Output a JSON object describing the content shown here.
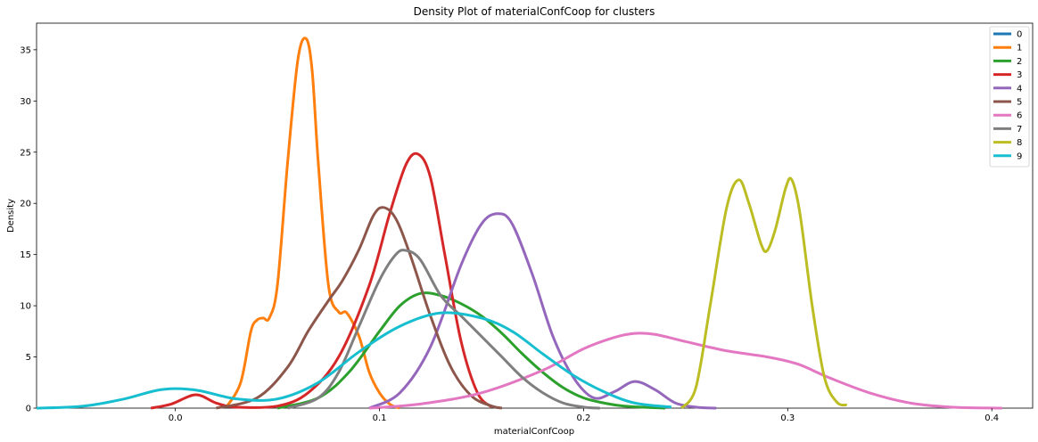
{
  "chart_data": {
    "type": "line",
    "title": "Density Plot of materialConfCoop for clusters",
    "xlabel": "materialConfCoop",
    "ylabel": "Density",
    "xlim": [
      -0.068,
      0.42
    ],
    "ylim": [
      0,
      37.6
    ],
    "xticks": [
      0.0,
      0.1,
      0.2,
      0.3,
      0.4
    ],
    "xtick_labels": [
      "0.0",
      "0.1",
      "0.2",
      "0.3",
      "0.4"
    ],
    "yticks": [
      0,
      5,
      10,
      15,
      20,
      25,
      30,
      35
    ],
    "ytick_labels": [
      "0",
      "5",
      "10",
      "15",
      "20",
      "25",
      "30",
      "35"
    ],
    "grid": false,
    "legend_position": "top-right",
    "series": [
      {
        "name": "0",
        "color": "#1f77b4",
        "x": [],
        "y": []
      },
      {
        "name": "1",
        "color": "#ff7f0e",
        "x": [
          0.025,
          0.032,
          0.037,
          0.04,
          0.043,
          0.046,
          0.05,
          0.055,
          0.06,
          0.064,
          0.067,
          0.07,
          0.075,
          0.08,
          0.084,
          0.09,
          0.095,
          0.1,
          0.105,
          0.11
        ],
        "y": [
          0.1,
          2.5,
          7.5,
          8.6,
          8.8,
          8.8,
          12.0,
          24.0,
          34.0,
          36.1,
          33.0,
          24.0,
          12.0,
          9.4,
          9.3,
          7.0,
          3.5,
          1.5,
          0.4,
          0.0
        ]
      },
      {
        "name": "2",
        "color": "#2ca02c",
        "x": [
          0.05,
          0.07,
          0.085,
          0.1,
          0.11,
          0.12,
          0.13,
          0.14,
          0.15,
          0.16,
          0.17,
          0.18,
          0.19,
          0.2,
          0.21,
          0.22,
          0.24
        ],
        "y": [
          0.0,
          1.0,
          3.5,
          7.5,
          10.0,
          11.2,
          11.0,
          10.2,
          9.0,
          7.3,
          5.3,
          3.5,
          2.0,
          1.0,
          0.5,
          0.2,
          0.0
        ]
      },
      {
        "name": "3",
        "color": "#d62728",
        "x": [
          -0.012,
          -0.002,
          0.01,
          0.02,
          0.03,
          0.05,
          0.065,
          0.08,
          0.095,
          0.105,
          0.113,
          0.119,
          0.125,
          0.132,
          0.14,
          0.148,
          0.155
        ],
        "y": [
          0.0,
          0.4,
          1.3,
          0.5,
          0.1,
          0.2,
          1.5,
          5.0,
          12.0,
          19.0,
          23.8,
          24.8,
          22.5,
          15.0,
          6.5,
          1.5,
          0.1
        ]
      },
      {
        "name": "4",
        "color": "#9467bd",
        "x": [
          0.095,
          0.11,
          0.125,
          0.14,
          0.15,
          0.158,
          0.165,
          0.175,
          0.185,
          0.195,
          0.205,
          0.215,
          0.225,
          0.235,
          0.245,
          0.255,
          0.265
        ],
        "y": [
          0.0,
          1.5,
          6.0,
          14.0,
          18.0,
          19.0,
          18.0,
          13.0,
          7.0,
          3.0,
          1.0,
          1.6,
          2.6,
          1.8,
          0.5,
          0.1,
          0.0
        ]
      },
      {
        "name": "5",
        "color": "#8c564b",
        "x": [
          0.02,
          0.04,
          0.055,
          0.065,
          0.075,
          0.082,
          0.09,
          0.097,
          0.102,
          0.108,
          0.115,
          0.125,
          0.135,
          0.145,
          0.155,
          0.16
        ],
        "y": [
          0.0,
          1.0,
          4.0,
          7.5,
          10.5,
          12.5,
          15.5,
          18.8,
          19.6,
          18.5,
          15.0,
          9.0,
          4.0,
          1.2,
          0.2,
          0.0
        ]
      },
      {
        "name": "6",
        "color": "#e377c2",
        "x": [
          0.095,
          0.12,
          0.15,
          0.18,
          0.2,
          0.215,
          0.225,
          0.235,
          0.25,
          0.27,
          0.29,
          0.305,
          0.32,
          0.34,
          0.36,
          0.38,
          0.405
        ],
        "y": [
          0.0,
          0.4,
          1.5,
          3.7,
          5.8,
          6.9,
          7.3,
          7.2,
          6.5,
          5.6,
          5.0,
          4.3,
          3.0,
          1.5,
          0.5,
          0.1,
          0.0
        ]
      },
      {
        "name": "7",
        "color": "#7f7f7f",
        "x": [
          0.055,
          0.07,
          0.08,
          0.09,
          0.1,
          0.108,
          0.113,
          0.12,
          0.13,
          0.14,
          0.15,
          0.16,
          0.17,
          0.18,
          0.19,
          0.2,
          0.208
        ],
        "y": [
          0.0,
          1.0,
          3.5,
          8.0,
          12.5,
          15.0,
          15.4,
          14.5,
          11.0,
          9.0,
          7.0,
          5.0,
          3.0,
          1.5,
          0.5,
          0.1,
          0.0
        ]
      },
      {
        "name": "8",
        "color": "#bcbd22",
        "x": [
          0.248,
          0.255,
          0.262,
          0.27,
          0.276,
          0.281,
          0.287,
          0.29,
          0.294,
          0.299,
          0.302,
          0.306,
          0.312,
          0.318,
          0.324,
          0.329
        ],
        "y": [
          0.0,
          2.0,
          10.0,
          19.5,
          22.3,
          20.0,
          16.0,
          15.4,
          17.5,
          21.5,
          22.3,
          19.0,
          10.0,
          3.0,
          0.6,
          0.3
        ]
      },
      {
        "name": "9",
        "color": "#17becf",
        "x": [
          -0.068,
          -0.045,
          -0.025,
          -0.01,
          0.0,
          0.012,
          0.03,
          0.05,
          0.07,
          0.09,
          0.11,
          0.13,
          0.15,
          0.165,
          0.18,
          0.195,
          0.21,
          0.225,
          0.243
        ],
        "y": [
          0.0,
          0.2,
          0.9,
          1.7,
          1.9,
          1.7,
          0.9,
          0.9,
          2.5,
          5.5,
          8.0,
          9.3,
          8.8,
          7.5,
          5.3,
          3.2,
          1.6,
          0.5,
          0.1
        ]
      }
    ]
  }
}
